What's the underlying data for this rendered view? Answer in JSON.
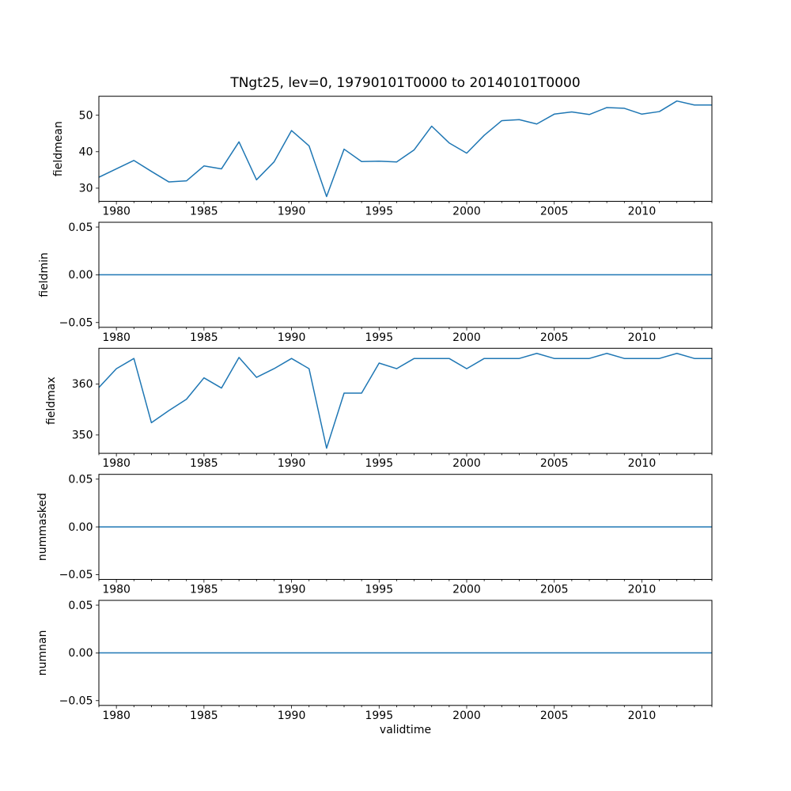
{
  "figure": {
    "background": "#ffffff",
    "text_color": "#000000",
    "spine_color": "#000000"
  },
  "chart_data": {
    "type": "line",
    "title": "TNgt25, lev=0, 19790101T0000 to 20140101T0000",
    "xlabel": "validtime",
    "line_color": "#1f77b4",
    "legend": "none",
    "grid": false,
    "x": [
      1979,
      1980,
      1981,
      1982,
      1983,
      1984,
      1985,
      1986,
      1987,
      1988,
      1989,
      1990,
      1991,
      1992,
      1993,
      1994,
      1995,
      1996,
      1997,
      1998,
      1999,
      2000,
      2001,
      2002,
      2003,
      2004,
      2005,
      2006,
      2007,
      2008,
      2009,
      2010,
      2011,
      2012,
      2013,
      2014
    ],
    "xlim": [
      1979,
      2014
    ],
    "xticks": [
      1980,
      1985,
      1990,
      1995,
      2000,
      2005,
      2010
    ],
    "xtick_labels": [
      "1980",
      "1985",
      "1990",
      "1995",
      "2000",
      "2005",
      "2010"
    ],
    "minor_xtick_interval": 1,
    "subplots": [
      {
        "ylabel": "fieldmean",
        "values": [
          33.0,
          35.3,
          37.6,
          34.6,
          31.7,
          32.0,
          36.1,
          35.3,
          42.7,
          32.3,
          37.2,
          45.8,
          41.6,
          27.7,
          40.7,
          37.3,
          37.4,
          37.2,
          40.5,
          47.0,
          42.4,
          39.6,
          44.5,
          48.5,
          48.8,
          47.6,
          50.3,
          50.9,
          50.2,
          52.1,
          51.9,
          50.3,
          51.0,
          53.9,
          52.8,
          52.8
        ],
        "yticks": [
          30,
          40,
          50
        ],
        "ytick_labels": [
          "30",
          "40",
          "50"
        ],
        "ylim": [
          26.4,
          55.2
        ]
      },
      {
        "ylabel": "fieldmin",
        "values": [
          0,
          0,
          0,
          0,
          0,
          0,
          0,
          0,
          0,
          0,
          0,
          0,
          0,
          0,
          0,
          0,
          0,
          0,
          0,
          0,
          0,
          0,
          0,
          0,
          0,
          0,
          0,
          0,
          0,
          0,
          0,
          0,
          0,
          0,
          0,
          0
        ],
        "yticks": [
          -0.05,
          0.0,
          0.05
        ],
        "ytick_labels": [
          "−0.05",
          "0.00",
          "0.05"
        ],
        "ylim": [
          -0.055,
          0.055
        ]
      },
      {
        "ylabel": "fieldmax",
        "values": [
          359.3,
          363.0,
          365.0,
          352.4,
          354.8,
          357.0,
          361.2,
          359.2,
          365.2,
          361.3,
          363.0,
          365.0,
          363.0,
          347.4,
          358.2,
          358.2,
          364.1,
          363.0,
          365.0,
          365.0,
          365.0,
          363.0,
          365.0,
          365.0,
          365.0,
          366.0,
          365.0,
          365.0,
          365.0,
          366.0,
          365.0,
          365.0,
          365.0,
          366.0,
          365.0,
          365.0
        ],
        "yticks": [
          350,
          360
        ],
        "ytick_labels": [
          "350",
          "360"
        ],
        "ylim": [
          346.4,
          367.0
        ]
      },
      {
        "ylabel": "nummasked",
        "values": [
          0,
          0,
          0,
          0,
          0,
          0,
          0,
          0,
          0,
          0,
          0,
          0,
          0,
          0,
          0,
          0,
          0,
          0,
          0,
          0,
          0,
          0,
          0,
          0,
          0,
          0,
          0,
          0,
          0,
          0,
          0,
          0,
          0,
          0,
          0,
          0
        ],
        "yticks": [
          -0.05,
          0.0,
          0.05
        ],
        "ytick_labels": [
          "−0.05",
          "0.00",
          "0.05"
        ],
        "ylim": [
          -0.055,
          0.055
        ]
      },
      {
        "ylabel": "numnan",
        "values": [
          0,
          0,
          0,
          0,
          0,
          0,
          0,
          0,
          0,
          0,
          0,
          0,
          0,
          0,
          0,
          0,
          0,
          0,
          0,
          0,
          0,
          0,
          0,
          0,
          0,
          0,
          0,
          0,
          0,
          0,
          0,
          0,
          0,
          0,
          0,
          0
        ],
        "yticks": [
          -0.05,
          0.0,
          0.05
        ],
        "ytick_labels": [
          "−0.05",
          "0.00",
          "0.05"
        ],
        "ylim": [
          -0.055,
          0.055
        ]
      }
    ]
  }
}
